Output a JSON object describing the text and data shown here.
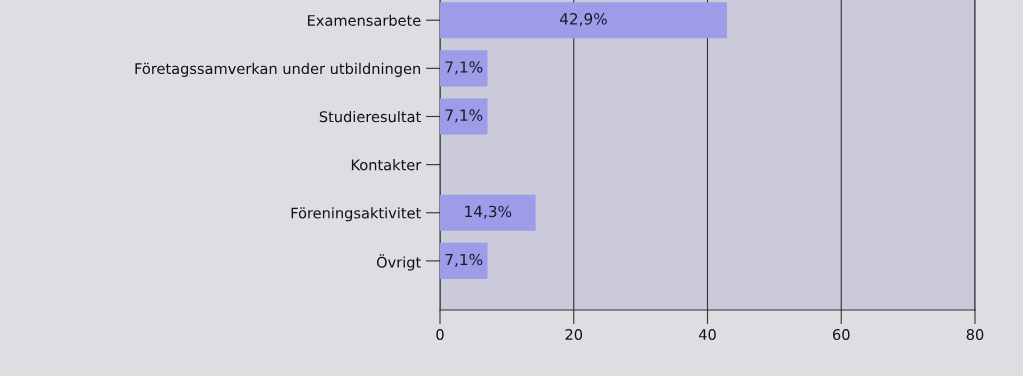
{
  "chart_data": {
    "type": "bar",
    "orientation": "horizontal",
    "categories": [
      "Examensarbete",
      "Företagssamverkan under utbildningen",
      "Studieresultat",
      "Kontakter",
      "Föreningsaktivitet",
      "Övrigt"
    ],
    "values": [
      42.9,
      7.1,
      7.1,
      0,
      14.3,
      7.1
    ],
    "value_labels": [
      "42,9%",
      "7,1%",
      "7,1%",
      null,
      "14,3%",
      "7,1%"
    ],
    "color": "#9c9ce8",
    "xlim": [
      0,
      80
    ],
    "xticks": [
      0,
      20,
      40,
      60,
      80
    ],
    "grid": "x",
    "legend": false
  }
}
